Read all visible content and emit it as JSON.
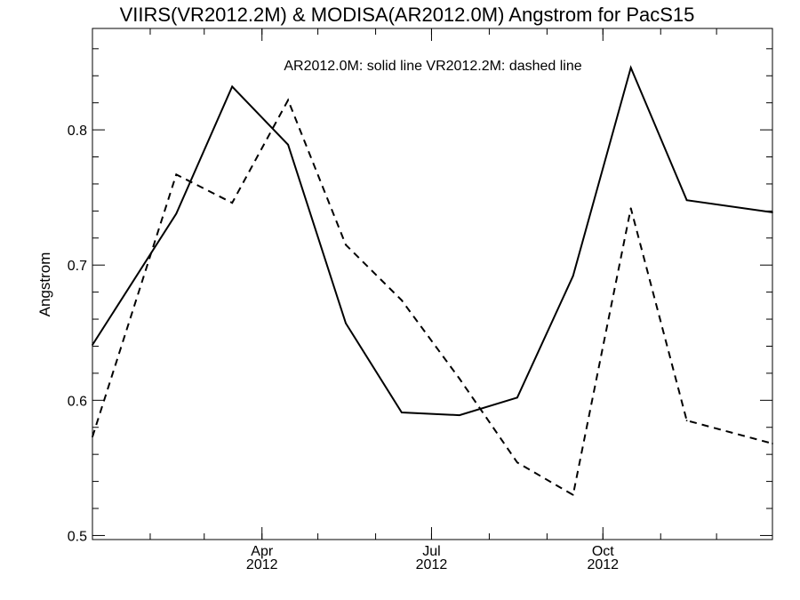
{
  "chart_data": {
    "type": "line",
    "title": "VIIRS(VR2012.2M) & MODISA(AR2012.0M)  Angstrom for PacS15",
    "annotation": "AR2012.0M: solid line   VR2012.2M: dashed line",
    "xlabel": "",
    "ylabel": "Angstrom",
    "ylim": [
      0.497,
      0.875
    ],
    "xlim": [
      "2012-01-01",
      "2012-12-31"
    ],
    "x": [
      "2012-01-01",
      "2012-02-15",
      "2012-03-16",
      "2012-04-15",
      "2012-05-16",
      "2012-06-15",
      "2012-07-16",
      "2012-08-16",
      "2012-09-15",
      "2012-10-16",
      "2012-11-15",
      "2012-12-31"
    ],
    "x_ticks": [
      {
        "date": "2012-04-01",
        "month": "Apr",
        "year": "2012"
      },
      {
        "date": "2012-07-01",
        "month": "Jul",
        "year": "2012"
      },
      {
        "date": "2012-10-01",
        "month": "Oct",
        "year": "2012"
      }
    ],
    "y_ticks": [
      0.5,
      0.6,
      0.7,
      0.8
    ],
    "y_tick_labels": [
      "0.5",
      "0.6",
      "0.7",
      "0.8"
    ],
    "series": [
      {
        "style": "solid",
        "values": [
          0.641,
          0.738,
          0.832,
          0.789,
          0.657,
          0.591,
          0.589,
          0.602,
          0.692,
          0.846,
          0.748,
          0.739
        ]
      },
      {
        "style": "dashed",
        "values": [
          0.573,
          0.767,
          0.746,
          0.822,
          0.715,
          0.674,
          0.616,
          0.554,
          0.53,
          0.742,
          0.585,
          0.568
        ]
      }
    ]
  }
}
